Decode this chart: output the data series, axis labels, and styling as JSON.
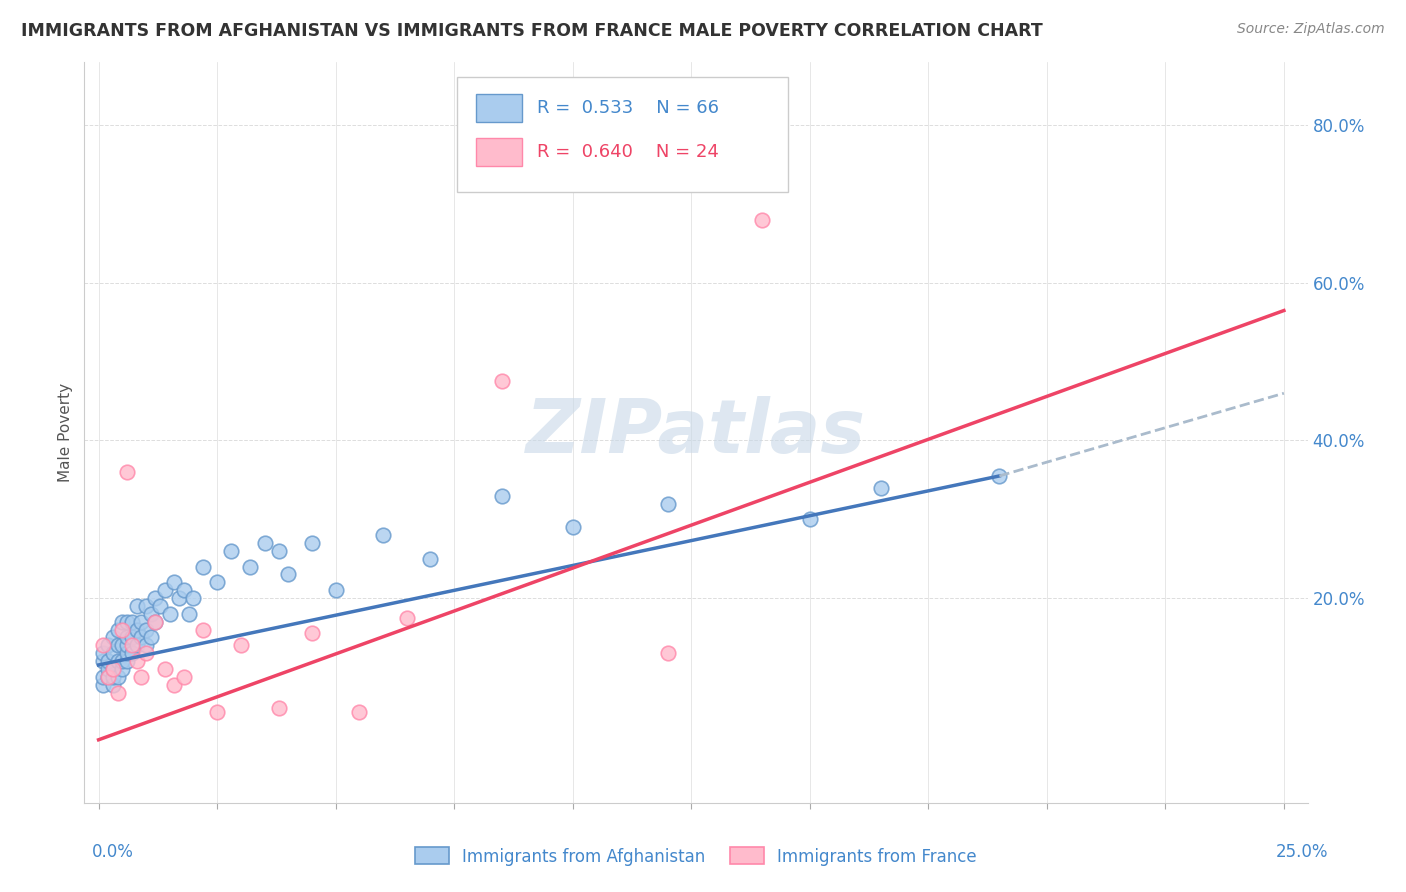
{
  "title": "IMMIGRANTS FROM AFGHANISTAN VS IMMIGRANTS FROM FRANCE MALE POVERTY CORRELATION CHART",
  "source": "Source: ZipAtlas.com",
  "ylabel": "Male Poverty",
  "xlim": [
    0.0,
    0.25
  ],
  "ylim": [
    0.0,
    0.88
  ],
  "color_afghanistan_face": "#AACCEE",
  "color_afghanistan_edge": "#6699CC",
  "color_france_face": "#FFBBCC",
  "color_france_edge": "#FF88AA",
  "color_trendline_afghanistan": "#4477BB",
  "color_trendline_france": "#EE4466",
  "color_trendline_ext": "#AABBCC",
  "watermark_color": "#C8D8E8",
  "afg_trend_x0": 0.0,
  "afg_trend_y0": 0.115,
  "afg_trend_x1": 0.19,
  "afg_trend_y1": 0.355,
  "afg_trend_ext_x1": 0.25,
  "afg_trend_ext_y1": 0.46,
  "fr_trend_x0": 0.0,
  "fr_trend_y0": 0.02,
  "fr_trend_x1": 0.25,
  "fr_trend_y1": 0.565,
  "afghanistan_x": [
    0.001,
    0.001,
    0.001,
    0.001,
    0.002,
    0.002,
    0.002,
    0.002,
    0.003,
    0.003,
    0.003,
    0.003,
    0.003,
    0.004,
    0.004,
    0.004,
    0.004,
    0.005,
    0.005,
    0.005,
    0.005,
    0.006,
    0.006,
    0.006,
    0.006,
    0.006,
    0.007,
    0.007,
    0.007,
    0.008,
    0.008,
    0.008,
    0.009,
    0.009,
    0.01,
    0.01,
    0.01,
    0.011,
    0.011,
    0.012,
    0.012,
    0.013,
    0.014,
    0.015,
    0.016,
    0.017,
    0.018,
    0.019,
    0.02,
    0.022,
    0.025,
    0.028,
    0.032,
    0.035,
    0.038,
    0.04,
    0.045,
    0.05,
    0.06,
    0.07,
    0.085,
    0.1,
    0.12,
    0.15,
    0.165,
    0.19
  ],
  "afghanistan_y": [
    0.09,
    0.1,
    0.12,
    0.13,
    0.1,
    0.11,
    0.12,
    0.14,
    0.09,
    0.1,
    0.11,
    0.13,
    0.15,
    0.1,
    0.12,
    0.14,
    0.16,
    0.11,
    0.12,
    0.14,
    0.17,
    0.12,
    0.13,
    0.14,
    0.15,
    0.17,
    0.13,
    0.15,
    0.17,
    0.14,
    0.16,
    0.19,
    0.15,
    0.17,
    0.14,
    0.16,
    0.19,
    0.15,
    0.18,
    0.17,
    0.2,
    0.19,
    0.21,
    0.18,
    0.22,
    0.2,
    0.21,
    0.18,
    0.2,
    0.24,
    0.22,
    0.26,
    0.24,
    0.27,
    0.26,
    0.23,
    0.27,
    0.21,
    0.28,
    0.25,
    0.33,
    0.29,
    0.32,
    0.3,
    0.34,
    0.355
  ],
  "france_x": [
    0.001,
    0.002,
    0.003,
    0.004,
    0.005,
    0.006,
    0.007,
    0.008,
    0.009,
    0.01,
    0.012,
    0.014,
    0.016,
    0.018,
    0.022,
    0.025,
    0.03,
    0.038,
    0.045,
    0.055,
    0.065,
    0.085,
    0.12,
    0.14
  ],
  "france_y": [
    0.14,
    0.1,
    0.11,
    0.08,
    0.16,
    0.36,
    0.14,
    0.12,
    0.1,
    0.13,
    0.17,
    0.11,
    0.09,
    0.1,
    0.16,
    0.055,
    0.14,
    0.06,
    0.155,
    0.055,
    0.175,
    0.475,
    0.13,
    0.68
  ]
}
